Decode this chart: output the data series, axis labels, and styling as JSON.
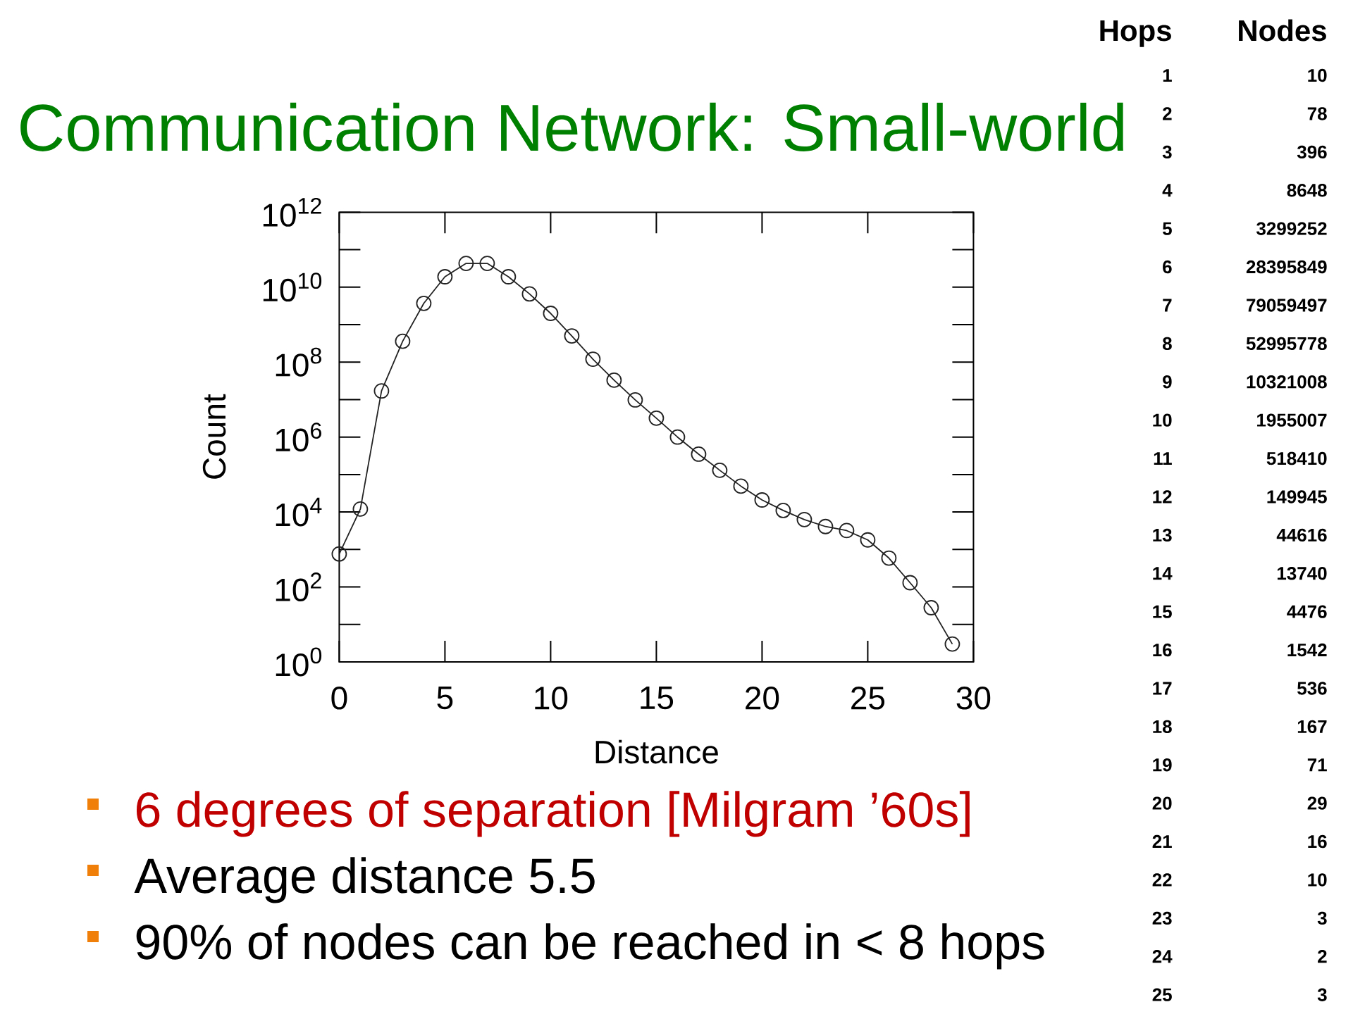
{
  "chart_data": [
    {
      "type": "line",
      "title": "Communication Network: Small-world",
      "xlabel": "Distance",
      "ylabel": "Count",
      "annotations": [
        "6 degrees of separation [Milgram ’60s]",
        "Average distance 5.5",
        "90% of nodes can be reached in < 8 hops"
      ],
      "x": [
        0,
        1,
        2,
        3,
        4,
        5,
        6,
        7,
        8,
        9,
        10,
        11,
        12,
        13,
        14,
        15,
        16,
        17,
        18,
        19,
        20,
        21,
        22,
        23,
        24,
        25,
        26,
        27,
        28,
        29
      ],
      "values": [
        760,
        12000,
        17000000.0,
        360000000.0,
        3700000000.0,
        19000000000.0,
        43000000000.0,
        43000000000.0,
        19000000000.0,
        6600000000.0,
        2000000000.0,
        500000000.0,
        120000000.0,
        33000000.0,
        9800000.0,
        3200000.0,
        1000000.0,
        350000.0,
        130000.0,
        49000,
        21000,
        11000,
        6300,
        4100,
        3200,
        1800,
        590,
        130,
        28,
        3.0
      ],
      "color": "#222222",
      "marker": "circle",
      "line_style": "solid",
      "log": true,
      "xlim": [
        0,
        30
      ],
      "ylim": [
        1,
        1000000000000.0
      ],
      "xticks": [
        0,
        5,
        10,
        15,
        20,
        25,
        30
      ],
      "yticks": [
        {
          "value": 1,
          "label": "10$^{0}$"
        },
        {
          "value": 10,
          "label": null
        },
        {
          "value": 100,
          "label": "10$^{2}$"
        },
        {
          "value": 1000,
          "label": null
        },
        {
          "value": 10000.0,
          "label": "10$^{4}$"
        },
        {
          "value": 100000.0,
          "label": null
        },
        {
          "value": 1000000.0,
          "label": "10$^{6}$"
        },
        {
          "value": 10000000.0,
          "label": null
        },
        {
          "value": 100000000.0,
          "label": "10$^{8}$"
        },
        {
          "value": 1000000000.0,
          "label": null
        },
        {
          "value": 10000000000.0,
          "label": "10$^{10}$"
        },
        {
          "value": 100000000000.0,
          "label": null
        },
        {
          "value": 1000000000000.0,
          "label": "10$^{12}$"
        }
      ]
    },
    {
      "type": "heatmap",
      "ylabel": "Hops",
      "data_labels": true,
      "categories": [
        "Nodes"
      ],
      "y_categories": [
        "1",
        "2",
        "3",
        "4",
        "5",
        "6",
        "7",
        "8",
        "9",
        "10",
        "11",
        "12",
        "13",
        "14",
        "15",
        "16",
        "17",
        "18",
        "19",
        "20",
        "21",
        "22",
        "23",
        "24",
        "25"
      ],
      "cells": [
        [
          10
        ],
        [
          78
        ],
        [
          396
        ],
        [
          8648
        ],
        [
          3299252
        ],
        [
          28395849
        ],
        [
          79059497
        ],
        [
          52995778
        ],
        [
          10321008
        ],
        [
          1955007
        ],
        [
          518410
        ],
        [
          149945
        ],
        [
          44616
        ],
        [
          13740
        ],
        [
          4476
        ],
        [
          1542
        ],
        [
          536
        ],
        [
          167
        ],
        [
          71
        ],
        [
          29
        ],
        [
          16
        ],
        [
          10
        ],
        [
          3
        ],
        [
          2
        ],
        [
          3
        ]
      ]
    }
  ]
}
